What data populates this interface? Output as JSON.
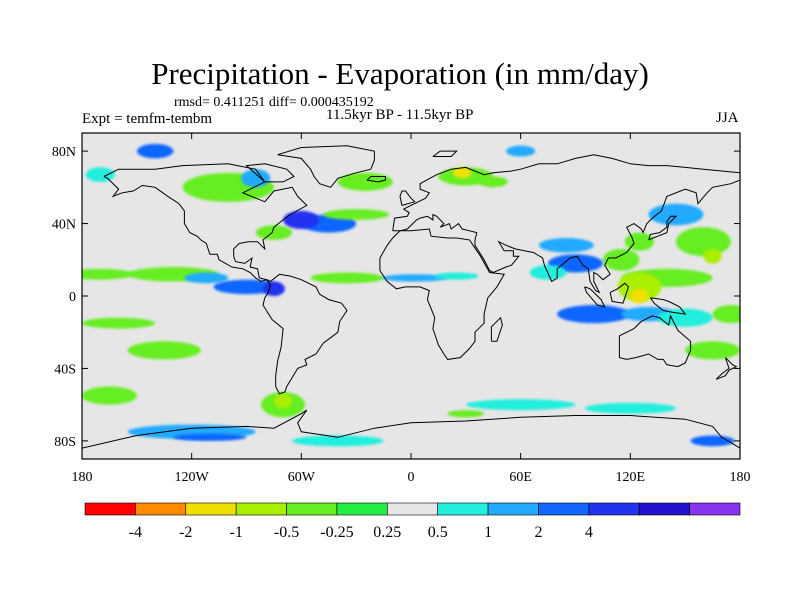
{
  "title": "Precipitation - Evaporation (in mm/day)",
  "stats": "rmsd= 0.411251 diff= 0.000435192",
  "period": "11.5kyr BP - 11.5kyr BP",
  "experiment": "Expt = temfm-tembm",
  "season": "JJA",
  "map": {
    "lon_range": [
      -180,
      180
    ],
    "lat_range": [
      -90,
      90
    ],
    "ocean_color": "#e6e6e6",
    "coastline_color": "#000000",
    "x_ticks": [
      {
        "lon": -180,
        "label": "180"
      },
      {
        "lon": -120,
        "label": "120W"
      },
      {
        "lon": -60,
        "label": "60W"
      },
      {
        "lon": 0,
        "label": "0"
      },
      {
        "lon": 60,
        "label": "60E"
      },
      {
        "lon": 120,
        "label": "120E"
      },
      {
        "lon": 180,
        "label": "180"
      }
    ],
    "y_ticks": [
      {
        "lat": 80,
        "label": "80N"
      },
      {
        "lat": 40,
        "label": "40N"
      },
      {
        "lat": 0,
        "label": "0"
      },
      {
        "lat": -40,
        "label": "40S"
      },
      {
        "lat": -80,
        "label": "80S"
      }
    ]
  },
  "colorbar": {
    "colors": [
      "#ff0000",
      "#ff8a00",
      "#f0e000",
      "#aaee00",
      "#66ee22",
      "#22ee44",
      "#e6e6e6",
      "#22eedd",
      "#22aaff",
      "#1166ff",
      "#2233ee",
      "#2211cc",
      "#8833ee"
    ],
    "labels": [
      "-4",
      "-2",
      "-1",
      "-0.5",
      "-0.25",
      "0.25",
      "0.5",
      "1",
      "2",
      "4"
    ]
  },
  "anomaly_patches": [
    {
      "lon": -170,
      "lat": 12,
      "rlon": 18,
      "rlat": 3,
      "value": -0.5
    },
    {
      "lon": -130,
      "lat": 12,
      "rlon": 25,
      "rlat": 4,
      "value": -0.5
    },
    {
      "lon": -112,
      "lat": 10,
      "rlon": 12,
      "rlat": 3,
      "value": 1
    },
    {
      "lon": -90,
      "lat": 5,
      "rlon": 18,
      "rlat": 4,
      "value": 2
    },
    {
      "lon": -75,
      "lat": 4,
      "rlon": 6,
      "rlat": 4,
      "value": 4
    },
    {
      "lon": -35,
      "lat": 10,
      "rlon": 20,
      "rlat": 3,
      "value": -0.5
    },
    {
      "lon": 2,
      "lat": 10,
      "rlon": 18,
      "rlat": 2,
      "value": 1
    },
    {
      "lon": 25,
      "lat": 11,
      "rlon": 12,
      "rlat": 2,
      "value": 0.5
    },
    {
      "lon": -45,
      "lat": 40,
      "rlon": 15,
      "rlat": 5,
      "value": 2
    },
    {
      "lon": -60,
      "lat": 42,
      "rlon": 10,
      "rlat": 5,
      "value": 4
    },
    {
      "lon": -75,
      "lat": 35,
      "rlon": 10,
      "rlat": 4,
      "value": -0.5
    },
    {
      "lon": -30,
      "lat": 45,
      "rlon": 18,
      "rlat": 3,
      "value": -0.5
    },
    {
      "lon": -25,
      "lat": 63,
      "rlon": 15,
      "rlat": 5,
      "value": -0.5
    },
    {
      "lon": -100,
      "lat": 60,
      "rlon": 25,
      "rlat": 8,
      "value": -0.5
    },
    {
      "lon": -85,
      "lat": 65,
      "rlon": 8,
      "rlat": 5,
      "value": 1
    },
    {
      "lon": -140,
      "lat": 80,
      "rlon": 10,
      "rlat": 4,
      "value": 2
    },
    {
      "lon": -170,
      "lat": 67,
      "rlon": 8,
      "rlat": 4,
      "value": 0.5
    },
    {
      "lon": 30,
      "lat": 66,
      "rlon": 15,
      "rlat": 5,
      "value": -0.5
    },
    {
      "lon": 28,
      "lat": 68,
      "rlon": 5,
      "rlat": 3,
      "value": -2
    },
    {
      "lon": 45,
      "lat": 63,
      "rlon": 8,
      "rlat": 3,
      "value": -0.5
    },
    {
      "lon": 60,
      "lat": 80,
      "rlon": 8,
      "rlat": 3,
      "value": 1
    },
    {
      "lon": 145,
      "lat": 45,
      "rlon": 15,
      "rlat": 6,
      "value": 1
    },
    {
      "lon": 160,
      "lat": 30,
      "rlon": 15,
      "rlat": 8,
      "value": -0.5
    },
    {
      "lon": 165,
      "lat": 22,
      "rlon": 5,
      "rlat": 4,
      "value": -1
    },
    {
      "lon": 125,
      "lat": 30,
      "rlon": 8,
      "rlat": 5,
      "value": -0.5
    },
    {
      "lon": 115,
      "lat": 20,
      "rlon": 10,
      "rlat": 6,
      "value": -0.5
    },
    {
      "lon": 90,
      "lat": 18,
      "rlon": 15,
      "rlat": 5,
      "value": 2
    },
    {
      "lon": 75,
      "lat": 13,
      "rlon": 10,
      "rlat": 4,
      "value": 0.5
    },
    {
      "lon": 85,
      "lat": 28,
      "rlon": 15,
      "rlat": 4,
      "value": 1
    },
    {
      "lon": 140,
      "lat": 10,
      "rlon": 25,
      "rlat": 5,
      "value": -0.5
    },
    {
      "lon": 125,
      "lat": 5,
      "rlon": 12,
      "rlat": 8,
      "value": -1
    },
    {
      "lon": 125,
      "lat": 0,
      "rlon": 5,
      "rlat": 4,
      "value": -2
    },
    {
      "lon": 100,
      "lat": -10,
      "rlon": 20,
      "rlat": 5,
      "value": 2
    },
    {
      "lon": 130,
      "lat": -10,
      "rlon": 15,
      "rlat": 4,
      "value": 1
    },
    {
      "lon": 150,
      "lat": -12,
      "rlon": 15,
      "rlat": 5,
      "value": 0.5
    },
    {
      "lon": 175,
      "lat": -10,
      "rlon": 10,
      "rlat": 5,
      "value": -0.5
    },
    {
      "lon": 165,
      "lat": -30,
      "rlon": 15,
      "rlat": 5,
      "value": -0.5
    },
    {
      "lon": -160,
      "lat": -15,
      "rlon": 20,
      "rlat": 3,
      "value": -0.5
    },
    {
      "lon": -135,
      "lat": -30,
      "rlon": 20,
      "rlat": 5,
      "value": -0.5
    },
    {
      "lon": -165,
      "lat": -55,
      "rlon": 15,
      "rlat": 5,
      "value": -0.5
    },
    {
      "lon": -70,
      "lat": -60,
      "rlon": 12,
      "rlat": 7,
      "value": -0.5
    },
    {
      "lon": -70,
      "lat": -58,
      "rlon": 5,
      "rlat": 4,
      "value": -1
    },
    {
      "lon": -120,
      "lat": -75,
      "rlon": 35,
      "rlat": 4,
      "value": 1
    },
    {
      "lon": -110,
      "lat": -78,
      "rlon": 20,
      "rlat": 2,
      "value": 2
    },
    {
      "lon": -40,
      "lat": -80,
      "rlon": 25,
      "rlat": 3,
      "value": 0.5
    },
    {
      "lon": 30,
      "lat": -65,
      "rlon": 10,
      "rlat": 2,
      "value": -0.5
    },
    {
      "lon": 60,
      "lat": -60,
      "rlon": 30,
      "rlat": 3,
      "value": 0.5
    },
    {
      "lon": 120,
      "lat": -62,
      "rlon": 25,
      "rlat": 3,
      "value": 0.5
    },
    {
      "lon": 165,
      "lat": -80,
      "rlon": 12,
      "rlat": 3,
      "value": 2
    }
  ]
}
